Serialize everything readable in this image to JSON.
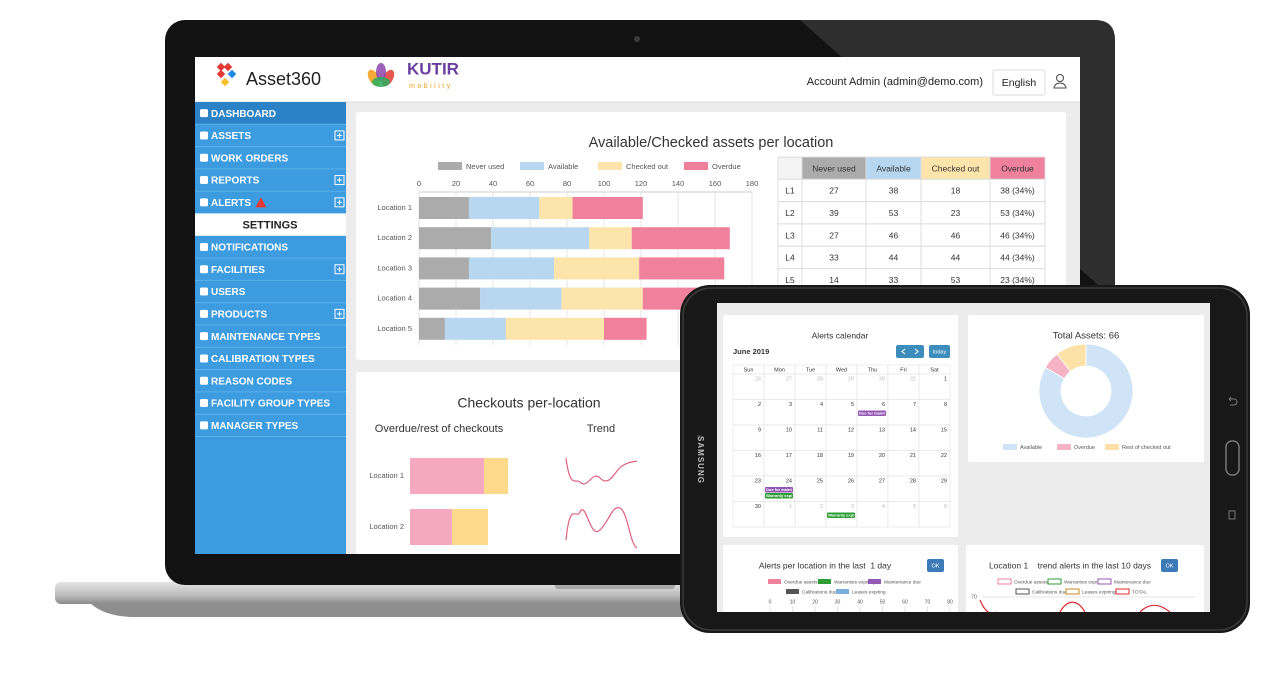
{
  "header": {
    "brand": "Asset360",
    "partner": "KUTIR",
    "partner_tagline": "mobility",
    "account": "Account Admin (admin@demo.com)",
    "language": "English"
  },
  "sidebar": {
    "items": [
      {
        "label": "DASHBOARD",
        "active": true
      },
      {
        "label": "ASSETS",
        "expandable": true
      },
      {
        "label": "WORK ORDERS"
      },
      {
        "label": "REPORTS",
        "expandable": true
      },
      {
        "label": "ALERTS",
        "expandable": true,
        "warning": true
      },
      {
        "label": "SETTINGS",
        "heading": true
      },
      {
        "label": "NOTIFICATIONS"
      },
      {
        "label": "FACILITIES",
        "expandable": true
      },
      {
        "label": "USERS"
      },
      {
        "label": "PRODUCTS",
        "expandable": true
      },
      {
        "label": "MAINTENANCE TYPES"
      },
      {
        "label": "CALIBRATION TYPES"
      },
      {
        "label": "REASON CODES"
      },
      {
        "label": "FACILITY GROUP TYPES"
      },
      {
        "label": "MANAGER TYPES"
      }
    ]
  },
  "asset_chart": {
    "type": "bar",
    "orientation": "horizontal",
    "stacked": true,
    "title": "Available/Checked assets per location",
    "categories": [
      "Location 1",
      "Location 2",
      "Location 3",
      "Location 4",
      "Location 5"
    ],
    "series": [
      {
        "name": "Never used",
        "color": "#ababab",
        "values": [
          27,
          39,
          27,
          33,
          14
        ]
      },
      {
        "name": "Available",
        "color": "#b7d7f0",
        "values": [
          38,
          53,
          46,
          44,
          33
        ]
      },
      {
        "name": "Checked out",
        "color": "#fde4ab",
        "values": [
          18,
          23,
          46,
          44,
          53
        ]
      },
      {
        "name": "Overdue",
        "color": "#ef819c",
        "values": [
          38,
          53,
          46,
          44,
          23
        ]
      }
    ],
    "xlim": [
      0,
      180
    ],
    "xticks": [
      0,
      20,
      40,
      60,
      80,
      100,
      120,
      140,
      160,
      180
    ],
    "grid": true
  },
  "asset_table": {
    "columns": [
      "Never used",
      "Available",
      "Checked out",
      "Overdue"
    ],
    "rows": [
      [
        "L1",
        "27",
        "38",
        "18",
        "38 (34%)"
      ],
      [
        "L2",
        "39",
        "53",
        "23",
        "53 (34%)"
      ],
      [
        "L3",
        "27",
        "46",
        "46",
        "46 (34%)"
      ],
      [
        "L4",
        "33",
        "44",
        "44",
        "44 (34%)"
      ],
      [
        "L5",
        "14",
        "33",
        "53",
        "23 (34%)"
      ]
    ]
  },
  "checkout_chart": {
    "type": "bar",
    "orientation": "horizontal",
    "stacked": true,
    "title": "Checkouts per-location",
    "subtitle": "Overdue/rest of checkouts",
    "trend_title": "Trend",
    "categories": [
      "Location 1",
      "Location 2"
    ],
    "series": [
      {
        "color": "#f5a9c0",
        "values": [
          74,
          42
        ]
      },
      {
        "color": "#fdd98c",
        "values": [
          24,
          36
        ]
      }
    ]
  },
  "tablet": {
    "brand": "SAMSUNG"
  },
  "calendar": {
    "title": "Alerts calendar",
    "month": "June 2019",
    "today": "today",
    "weekdays": [
      "Sun",
      "Mon",
      "Tue",
      "Wed",
      "Thu",
      "Fri",
      "Sat"
    ],
    "weeks": [
      [
        {
          "d": "26",
          "muted": true
        },
        {
          "d": "27",
          "muted": true
        },
        {
          "d": "28",
          "muted": true
        },
        {
          "d": "29",
          "muted": true
        },
        {
          "d": "30",
          "muted": true
        },
        {
          "d": "31",
          "muted": true
        },
        {
          "d": "1"
        }
      ],
      [
        {
          "d": "2"
        },
        {
          "d": "3"
        },
        {
          "d": "4"
        },
        {
          "d": "5"
        },
        {
          "d": "6",
          "events": [
            {
              "label": "Due for maint",
              "color": "#9457b3"
            }
          ]
        },
        {
          "d": "7"
        },
        {
          "d": "8"
        }
      ],
      [
        {
          "d": "9"
        },
        {
          "d": "10"
        },
        {
          "d": "11"
        },
        {
          "d": "12"
        },
        {
          "d": "13"
        },
        {
          "d": "14"
        },
        {
          "d": "15"
        }
      ],
      [
        {
          "d": "16"
        },
        {
          "d": "17"
        },
        {
          "d": "18"
        },
        {
          "d": "19"
        },
        {
          "d": "20"
        },
        {
          "d": "21"
        },
        {
          "d": "22"
        }
      ],
      [
        {
          "d": "23"
        },
        {
          "d": "24",
          "events": [
            {
              "label": "Due for maint",
              "color": "#9457b3"
            },
            {
              "label": "Warranty expi",
              "color": "#2d9e35"
            }
          ]
        },
        {
          "d": "25"
        },
        {
          "d": "26"
        },
        {
          "d": "27"
        },
        {
          "d": "28"
        },
        {
          "d": "29"
        }
      ],
      [
        {
          "d": "30"
        },
        {
          "d": "1",
          "muted": true
        },
        {
          "d": "2",
          "muted": true
        },
        {
          "d": "3",
          "muted": true,
          "events": [
            {
              "label": "Warranty expi",
              "color": "#2d9e35"
            }
          ]
        },
        {
          "d": "4",
          "muted": true
        },
        {
          "d": "5",
          "muted": true
        },
        {
          "d": "6",
          "muted": true
        }
      ]
    ]
  },
  "donut": {
    "type": "pie",
    "title": "Total Assets: 66",
    "categories": [
      "Available",
      "Overdue",
      "Rest of checked out"
    ],
    "values": [
      55,
      4,
      7
    ],
    "colors": [
      "#cfe4f6",
      "#f7b3c6",
      "#fde2a8"
    ]
  },
  "alerts_panel": {
    "title": "Alerts per location in the last  1 day",
    "button": "OK",
    "legend": [
      {
        "name": "Overdue assets",
        "color": "#ef819c"
      },
      {
        "name": "Warranties expiring",
        "color": "#2d9e35"
      },
      {
        "name": "Maintenance due",
        "color": "#9457b3"
      },
      {
        "name": "Calibrations due",
        "color": "#555555"
      },
      {
        "name": "Leases expiring",
        "color": "#79b0e0"
      }
    ],
    "xticks": [
      0,
      10,
      20,
      30,
      40,
      50,
      60,
      70,
      80
    ]
  },
  "trend_panel": {
    "title": "Location 1    trend alerts in the last 10 days",
    "button": "OK",
    "legend": [
      {
        "name": "Overdue assets",
        "color": "#ef819c"
      },
      {
        "name": "Warranties expiring",
        "color": "#2d9e35"
      },
      {
        "name": "Maintenance due",
        "color": "#9457b3"
      },
      {
        "name": "Calibrations due",
        "color": "#555555"
      },
      {
        "name": "Leases expiring",
        "color": "#c98a1a"
      },
      {
        "name": "TOTAL",
        "color": "#e02b2b"
      }
    ],
    "yticks": [
      70
    ]
  }
}
